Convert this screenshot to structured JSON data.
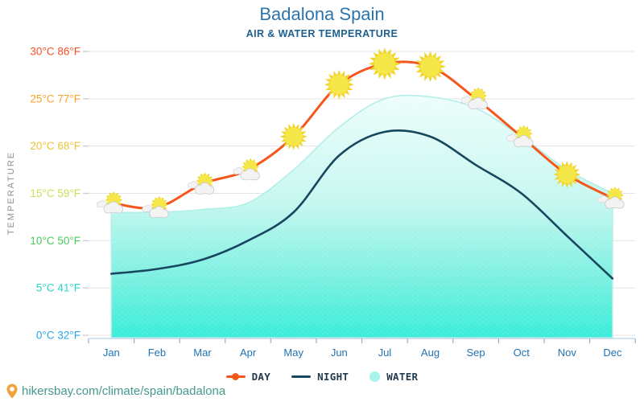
{
  "header": {
    "title": "Badalona Spain",
    "subtitle": "AIR & WATER TEMPERATURE"
  },
  "footer": {
    "url": "hikersbay.com/climate/spain/badalona",
    "pin_color": "#f0a33c",
    "url_color": "#459a8d"
  },
  "legend": [
    {
      "id": "day",
      "label": "DAY",
      "type": "line-dot",
      "color": "#f4571c"
    },
    {
      "id": "night",
      "label": "NIGHT",
      "type": "line",
      "color": "#17475f"
    },
    {
      "id": "water",
      "label": "WATER",
      "type": "circle",
      "color": "#a8f4ec"
    }
  ],
  "chart_data": {
    "type": "line",
    "title": "Badalona Spain",
    "subtitle": "AIR & WATER TEMPERATURE",
    "ylabel": "TEMPERATURE",
    "grid": true,
    "legend_position": "bottom",
    "categories": [
      "Jan",
      "Feb",
      "Mar",
      "Apr",
      "May",
      "Jun",
      "Jul",
      "Aug",
      "Sep",
      "Oct",
      "Nov",
      "Dec"
    ],
    "y_axis": {
      "range_c": [
        0,
        30
      ],
      "ticks": [
        {
          "c": 30,
          "f": 86,
          "color": "#fb5126"
        },
        {
          "c": 25,
          "f": 77,
          "color": "#fca326"
        },
        {
          "c": 20,
          "f": 68,
          "color": "#eec63e"
        },
        {
          "c": 15,
          "f": 59,
          "color": "#cade52"
        },
        {
          "c": 10,
          "f": 50,
          "color": "#4ec95d"
        },
        {
          "c": 5,
          "f": 41,
          "color": "#2ad8c8"
        },
        {
          "c": 0,
          "f": 32,
          "color": "#2aa7ea"
        }
      ]
    },
    "series": [
      {
        "name": "DAY",
        "kind": "line",
        "color": "#f4571c",
        "values": [
          14,
          13.5,
          16,
          17.5,
          21,
          26.5,
          28.7,
          28.4,
          25,
          21,
          17,
          14.5
        ],
        "markers": [
          "sun-cloud",
          "sun-cloud",
          "sun-cloud",
          "sun-cloud",
          "sun",
          "sun",
          "sun",
          "sun",
          "sun-cloud",
          "sun-cloud",
          "sun",
          "sun-cloud"
        ],
        "marker_sizes": [
          8,
          8,
          8,
          8,
          11,
          12,
          13,
          12.5,
          8,
          8,
          11,
          8
        ]
      },
      {
        "name": "NIGHT",
        "kind": "line",
        "color": "#17475f",
        "values": [
          6.5,
          7,
          8,
          10,
          13,
          19,
          21.5,
          21,
          18,
          15,
          10.5,
          6
        ]
      },
      {
        "name": "WATER",
        "kind": "area",
        "color_top": "#effefc",
        "color_mid": "#c6f7f0",
        "color_deep": "#7df0e1",
        "color_bottom": "#39edd9",
        "edge_color": "#b3eee7",
        "values": [
          13,
          13,
          13.3,
          14,
          17.5,
          22,
          25,
          25.2,
          24,
          21,
          17.5,
          15
        ]
      }
    ],
    "colors": {
      "month_label": "#2173b4",
      "axis_line": "#c5d9ea",
      "axis_tick": "#8fb4d6",
      "gridline": "#e4e4e4",
      "sun_core": "#f6e748",
      "sun_rays": "#f2d52f",
      "cloud_fill": "#f3f3f3",
      "cloud_edge": "#c9c9c9"
    }
  }
}
